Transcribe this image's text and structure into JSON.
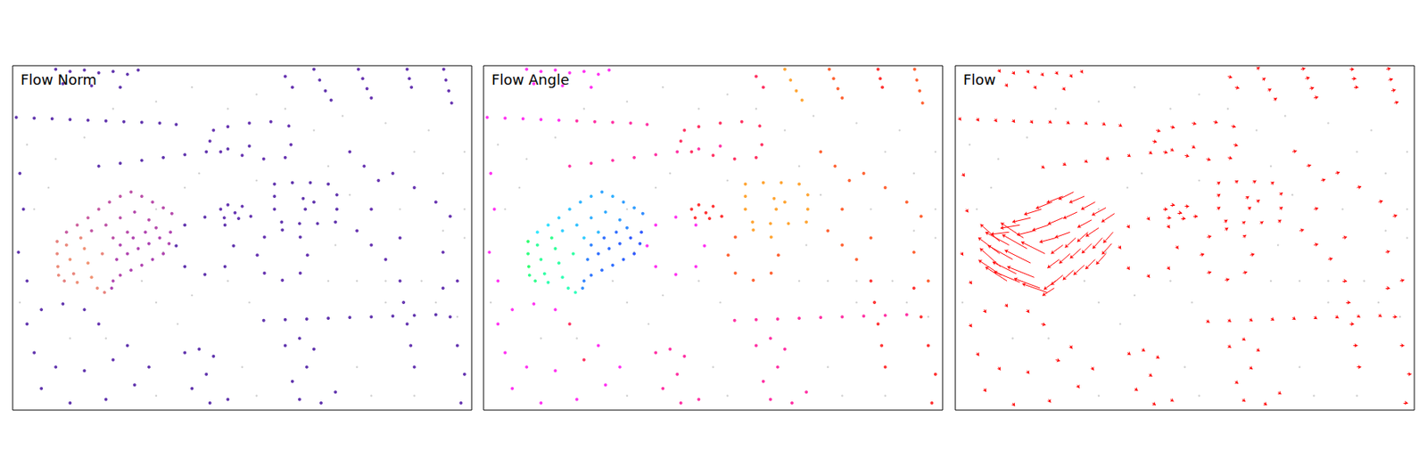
{
  "chart_data": [
    {
      "type": "norm_map",
      "title": "Flow Norm",
      "tick_labels": false,
      "xlim": [
        0,
        640
      ],
      "ylim": [
        0,
        480
      ],
      "color_range": [
        0,
        40
      ]
    },
    {
      "type": "angle_map",
      "title": "Flow Angle",
      "tick_labels": false,
      "xlim": [
        0,
        640
      ],
      "ylim": [
        0,
        480
      ],
      "color_range": [
        0,
        360
      ]
    },
    {
      "type": "quiver",
      "title": "Flow",
      "tick_labels": false,
      "xlim": [
        0,
        640
      ],
      "ylim": [
        0,
        480
      ],
      "color": "#ff0000"
    }
  ],
  "points": [
    [
      62,
      245,
      -18,
      -16
    ],
    [
      62,
      262,
      -20,
      -15
    ],
    [
      63,
      280,
      -19,
      -17
    ],
    [
      64,
      292,
      -21,
      -14
    ],
    [
      75,
      250,
      -22,
      -12
    ],
    [
      80,
      270,
      -23,
      -13
    ],
    [
      85,
      290,
      -22,
      -11
    ],
    [
      90,
      302,
      -24,
      -10
    ],
    [
      100,
      255,
      -23,
      -13
    ],
    [
      105,
      275,
      -24,
      -12
    ],
    [
      110,
      295,
      -25,
      -10
    ],
    [
      118,
      310,
      -24,
      -9
    ],
    [
      128,
      316,
      -23,
      -8
    ],
    [
      125,
      262,
      -22,
      -11
    ],
    [
      95,
      240,
      -21,
      -14
    ],
    [
      72,
      300,
      -20,
      -13
    ],
    [
      75,
      232,
      -17,
      2
    ],
    [
      90,
      222,
      -18,
      3
    ],
    [
      105,
      212,
      -17,
      4
    ],
    [
      120,
      200,
      -16,
      5
    ],
    [
      135,
      190,
      -15,
      6
    ],
    [
      150,
      182,
      -15,
      6
    ],
    [
      165,
      176,
      -14,
      7
    ],
    [
      180,
      182,
      -14,
      6
    ],
    [
      195,
      190,
      -13,
      7
    ],
    [
      210,
      198,
      -13,
      7
    ],
    [
      222,
      206,
      -12,
      8
    ],
    [
      110,
      230,
      -16,
      4
    ],
    [
      130,
      222,
      -15,
      5
    ],
    [
      150,
      212,
      -14,
      6
    ],
    [
      170,
      204,
      -13,
      6
    ],
    [
      190,
      215,
      -13,
      7
    ],
    [
      140,
      240,
      -15,
      4
    ],
    [
      160,
      232,
      -14,
      5
    ],
    [
      200,
      226,
      -12,
      8
    ],
    [
      140,
      300,
      -11,
      8
    ],
    [
      150,
      292,
      -11,
      9
    ],
    [
      165,
      285,
      -10,
      9
    ],
    [
      180,
      278,
      -10,
      9
    ],
    [
      195,
      270,
      -9,
      9
    ],
    [
      210,
      262,
      -9,
      10
    ],
    [
      218,
      248,
      -9,
      10
    ],
    [
      220,
      232,
      -9,
      10
    ],
    [
      145,
      270,
      -11,
      8
    ],
    [
      160,
      262,
      -10,
      9
    ],
    [
      175,
      255,
      -10,
      9
    ],
    [
      190,
      248,
      -9,
      9
    ],
    [
      205,
      240,
      -9,
      10
    ],
    [
      150,
      250,
      -11,
      8
    ],
    [
      168,
      240,
      -10,
      9
    ],
    [
      185,
      232,
      -10,
      9
    ],
    [
      138,
      310,
      -11,
      7
    ],
    [
      60,
      5,
      2,
      3
    ],
    [
      80,
      8,
      2,
      3
    ],
    [
      100,
      6,
      2,
      3
    ],
    [
      120,
      10,
      2,
      3
    ],
    [
      140,
      8,
      2,
      3
    ],
    [
      160,
      12,
      2,
      3
    ],
    [
      175,
      6,
      2,
      3
    ],
    [
      70,
      25,
      2,
      3
    ],
    [
      110,
      28,
      2,
      3
    ],
    [
      150,
      30,
      2,
      3
    ],
    [
      5,
      72,
      2,
      3
    ],
    [
      30,
      73,
      2,
      3
    ],
    [
      55,
      74,
      2,
      3
    ],
    [
      80,
      75,
      2,
      3
    ],
    [
      105,
      76,
      2,
      3
    ],
    [
      130,
      77,
      3,
      2
    ],
    [
      155,
      78,
      3,
      2
    ],
    [
      180,
      79,
      3,
      2
    ],
    [
      205,
      80,
      3,
      2
    ],
    [
      228,
      82,
      3,
      2
    ],
    [
      120,
      140,
      3,
      2
    ],
    [
      150,
      136,
      3,
      2
    ],
    [
      180,
      132,
      3,
      2
    ],
    [
      210,
      128,
      3,
      2
    ],
    [
      240,
      124,
      3,
      2
    ],
    [
      270,
      120,
      3,
      2
    ],
    [
      300,
      116,
      3,
      2
    ],
    [
      330,
      112,
      3,
      2
    ],
    [
      482,
      5,
      4,
      -1
    ],
    [
      488,
      18,
      4,
      -1
    ],
    [
      494,
      32,
      4,
      -1
    ],
    [
      500,
      45,
      4,
      -1
    ],
    [
      601,
      5,
      4,
      -1
    ],
    [
      604,
      20,
      4,
      -1
    ],
    [
      608,
      35,
      4,
      -1
    ],
    [
      612,
      52,
      4,
      -1
    ],
    [
      550,
      5,
      4,
      0
    ],
    [
      553,
      18,
      4,
      0
    ],
    [
      556,
      30,
      4,
      0
    ],
    [
      420,
      5,
      3,
      -2
    ],
    [
      428,
      20,
      3,
      -2
    ],
    [
      436,
      35,
      3,
      -2
    ],
    [
      444,
      48,
      3,
      -2
    ],
    [
      380,
      15,
      4,
      1
    ],
    [
      390,
      30,
      4,
      1
    ],
    [
      290,
      200,
      4,
      0
    ],
    [
      300,
      194,
      4,
      0
    ],
    [
      310,
      205,
      4,
      0
    ],
    [
      320,
      196,
      4,
      0
    ],
    [
      332,
      210,
      4,
      0
    ],
    [
      295,
      212,
      4,
      0
    ],
    [
      315,
      213,
      4,
      0
    ],
    [
      365,
      165,
      3,
      -2
    ],
    [
      390,
      163,
      3,
      -2
    ],
    [
      415,
      163,
      3,
      -2
    ],
    [
      440,
      165,
      3,
      -2
    ],
    [
      452,
      180,
      3,
      -2
    ],
    [
      452,
      200,
      3,
      -2
    ],
    [
      450,
      218,
      3,
      -2
    ],
    [
      425,
      220,
      3,
      -2
    ],
    [
      400,
      220,
      3,
      -2
    ],
    [
      375,
      218,
      3,
      -2
    ],
    [
      365,
      200,
      3,
      -2
    ],
    [
      365,
      182,
      3,
      -2
    ],
    [
      405,
      185,
      3,
      -2
    ],
    [
      408,
      200,
      3,
      -2
    ],
    [
      420,
      190,
      3,
      -2
    ],
    [
      280,
      90,
      4,
      1
    ],
    [
      300,
      85,
      4,
      1
    ],
    [
      330,
      80,
      4,
      1
    ],
    [
      360,
      78,
      4,
      1
    ],
    [
      385,
      84,
      4,
      1
    ],
    [
      290,
      120,
      4,
      1
    ],
    [
      320,
      125,
      4,
      1
    ],
    [
      350,
      130,
      4,
      1
    ],
    [
      380,
      128,
      4,
      1
    ],
    [
      275,
      105,
      4,
      1
    ],
    [
      388,
      110,
      4,
      1
    ],
    [
      470,
      120,
      4,
      -1
    ],
    [
      490,
      140,
      4,
      -1
    ],
    [
      510,
      160,
      4,
      -1
    ],
    [
      530,
      150,
      4,
      -1
    ],
    [
      560,
      170,
      4,
      -1
    ],
    [
      590,
      190,
      4,
      -1
    ],
    [
      610,
      210,
      4,
      -1
    ],
    [
      480,
      230,
      4,
      -1
    ],
    [
      500,
      250,
      4,
      -1
    ],
    [
      520,
      270,
      4,
      -1
    ],
    [
      540,
      240,
      4,
      -1
    ],
    [
      600,
      260,
      4,
      -1
    ],
    [
      620,
      300,
      4,
      -1
    ],
    [
      500,
      200,
      4,
      -1
    ],
    [
      350,
      355,
      3,
      2
    ],
    [
      380,
      354,
      3,
      2
    ],
    [
      410,
      353,
      3,
      2
    ],
    [
      440,
      352,
      3,
      2
    ],
    [
      470,
      351,
      3,
      2
    ],
    [
      500,
      350,
      3,
      2
    ],
    [
      530,
      349,
      3,
      2
    ],
    [
      560,
      348,
      3,
      2
    ],
    [
      590,
      347,
      3,
      2
    ],
    [
      228,
      251,
      2,
      3
    ],
    [
      240,
      222,
      2,
      3
    ],
    [
      268,
      211,
      2,
      3
    ],
    [
      296,
      222,
      2,
      3
    ],
    [
      308,
      251,
      2,
      3
    ],
    [
      296,
      280,
      2,
      3
    ],
    [
      268,
      291,
      2,
      3
    ],
    [
      240,
      280,
      2,
      3
    ],
    [
      341,
      264,
      4,
      -1
    ],
    [
      351,
      239,
      4,
      -1
    ],
    [
      376,
      229,
      3,
      -2
    ],
    [
      401,
      239,
      3,
      -2
    ],
    [
      411,
      264,
      4,
      -1
    ],
    [
      401,
      289,
      4,
      -1
    ],
    [
      376,
      299,
      4,
      -1
    ],
    [
      351,
      289,
      4,
      -1
    ],
    [
      20,
      360,
      2,
      3
    ],
    [
      40,
      340,
      2,
      3
    ],
    [
      70,
      332,
      2,
      3
    ],
    [
      100,
      340,
      2,
      3
    ],
    [
      120,
      360,
      4,
      1
    ],
    [
      30,
      400,
      2,
      3
    ],
    [
      60,
      420,
      2,
      3
    ],
    [
      100,
      425,
      2,
      3
    ],
    [
      140,
      410,
      4,
      1
    ],
    [
      160,
      390,
      2,
      3
    ],
    [
      40,
      450,
      2,
      3
    ],
    [
      80,
      470,
      2,
      3
    ],
    [
      130,
      465,
      2,
      3
    ],
    [
      170,
      445,
      2,
      3
    ],
    [
      190,
      420,
      2,
      3
    ],
    [
      240,
      400,
      3,
      2
    ],
    [
      260,
      395,
      3,
      2
    ],
    [
      280,
      405,
      3,
      2
    ],
    [
      270,
      430,
      3,
      2
    ],
    [
      250,
      450,
      3,
      2
    ],
    [
      275,
      470,
      3,
      2
    ],
    [
      300,
      465,
      3,
      2
    ],
    [
      380,
      390,
      3,
      2
    ],
    [
      400,
      380,
      3,
      2
    ],
    [
      420,
      395,
      3,
      2
    ],
    [
      410,
      420,
      3,
      2
    ],
    [
      390,
      440,
      3,
      2
    ],
    [
      400,
      465,
      3,
      2
    ],
    [
      430,
      470,
      3,
      2
    ],
    [
      450,
      455,
      3,
      2
    ],
    [
      540,
      300,
      4,
      0
    ],
    [
      545,
      330,
      4,
      0
    ],
    [
      550,
      360,
      4,
      0
    ],
    [
      555,
      390,
      4,
      0
    ],
    [
      560,
      420,
      4,
      0
    ],
    [
      600,
      310,
      4,
      0
    ],
    [
      610,
      350,
      4,
      0
    ],
    [
      620,
      390,
      4,
      0
    ],
    [
      630,
      430,
      4,
      0
    ],
    [
      625,
      470,
      4,
      0
    ],
    [
      10,
      150,
      2,
      3
    ],
    [
      15,
      200,
      2,
      3
    ],
    [
      20,
      300,
      2,
      3
    ],
    [
      8,
      260,
      2,
      3
    ]
  ],
  "background": [
    [
      20,
      110
    ],
    [
      60,
      130
    ],
    [
      100,
      100
    ],
    [
      140,
      60
    ],
    [
      200,
      50
    ],
    [
      250,
      30
    ],
    [
      300,
      60
    ],
    [
      340,
      40
    ],
    [
      380,
      60
    ],
    [
      420,
      90
    ],
    [
      460,
      70
    ],
    [
      520,
      80
    ],
    [
      580,
      90
    ],
    [
      630,
      120
    ],
    [
      600,
      150
    ],
    [
      560,
      120
    ],
    [
      540,
      200
    ],
    [
      630,
      200
    ],
    [
      630,
      240
    ],
    [
      600,
      230
    ],
    [
      570,
      300
    ],
    [
      590,
      330
    ],
    [
      620,
      350
    ],
    [
      520,
      330
    ],
    [
      480,
      300
    ],
    [
      440,
      300
    ],
    [
      330,
      330
    ],
    [
      300,
      300
    ],
    [
      250,
      320
    ],
    [
      200,
      330
    ],
    [
      180,
      300
    ],
    [
      230,
      360
    ],
    [
      320,
      420
    ],
    [
      340,
      460
    ],
    [
      480,
      420
    ],
    [
      500,
      460
    ],
    [
      560,
      460
    ],
    [
      200,
      460
    ],
    [
      130,
      380
    ],
    [
      80,
      380
    ],
    [
      10,
      330
    ],
    [
      30,
      200
    ],
    [
      50,
      170
    ],
    [
      240,
      170
    ],
    [
      260,
      150
    ],
    [
      440,
      140
    ],
    [
      470,
      180
    ],
    [
      340,
      160
    ],
    [
      200,
      200
    ],
    [
      210,
      260
    ],
    [
      450,
      250
    ],
    [
      520,
      300
    ]
  ]
}
